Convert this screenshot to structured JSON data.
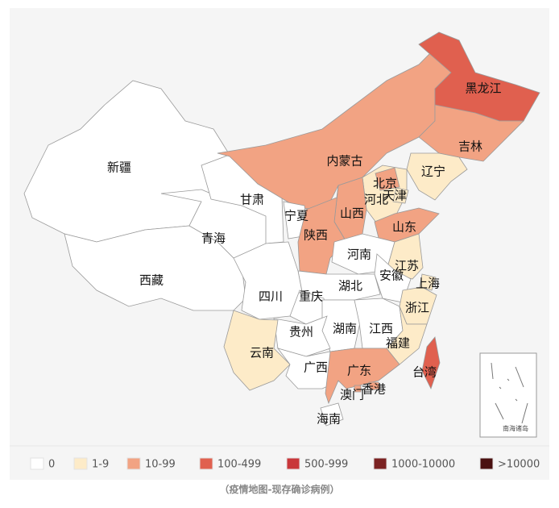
{
  "legend": [
    {
      "label": "0",
      "color": "#ffffff"
    },
    {
      "label": "1-9",
      "color": "#fdebc8"
    },
    {
      "label": "10-99",
      "color": "#f2a383"
    },
    {
      "label": "100-499",
      "color": "#e0604f"
    },
    {
      "label": "500-999",
      "color": "#c9373a"
    },
    {
      "label": "1000-10000",
      "color": "#7b2222"
    },
    {
      "label": ">10000",
      "color": "#4a1010"
    }
  ],
  "regions": [
    {
      "name": "新疆",
      "category": "0"
    },
    {
      "name": "西藏",
      "category": "0"
    },
    {
      "name": "青海",
      "category": "0"
    },
    {
      "name": "甘肃",
      "category": "0"
    },
    {
      "name": "内蒙古",
      "category": "10-99"
    },
    {
      "name": "黑龙江",
      "category": "100-499"
    },
    {
      "name": "吉林",
      "category": "10-99"
    },
    {
      "name": "辽宁",
      "category": "1-9"
    },
    {
      "name": "河北",
      "category": "1-9"
    },
    {
      "name": "北京",
      "category": "10-99"
    },
    {
      "name": "天津",
      "category": "1-9"
    },
    {
      "name": "山西",
      "category": "10-99"
    },
    {
      "name": "宁夏",
      "category": "0"
    },
    {
      "name": "陕西",
      "category": "10-99"
    },
    {
      "name": "山东",
      "category": "10-99"
    },
    {
      "name": "河南",
      "category": "0"
    },
    {
      "name": "江苏",
      "category": "1-9"
    },
    {
      "name": "安徽",
      "category": "0"
    },
    {
      "name": "上海",
      "category": "1-9"
    },
    {
      "name": "湖北",
      "category": "0"
    },
    {
      "name": "四川",
      "category": "0"
    },
    {
      "name": "重庆",
      "category": "0"
    },
    {
      "name": "浙江",
      "category": "1-9"
    },
    {
      "name": "湖南",
      "category": "0"
    },
    {
      "name": "江西",
      "category": "0"
    },
    {
      "name": "福建",
      "category": "1-9"
    },
    {
      "name": "贵州",
      "category": "0"
    },
    {
      "name": "云南",
      "category": "1-9"
    },
    {
      "name": "广西",
      "category": "0"
    },
    {
      "name": "广东",
      "category": "10-99"
    },
    {
      "name": "香港",
      "category": "10-99"
    },
    {
      "name": "澳门",
      "category": "10-99"
    },
    {
      "name": "海南",
      "category": "0"
    },
    {
      "name": "台湾",
      "category": "100-499"
    }
  ],
  "inset_label": "南海诸岛",
  "caption": "（疫情地图-现存确诊病例）"
}
